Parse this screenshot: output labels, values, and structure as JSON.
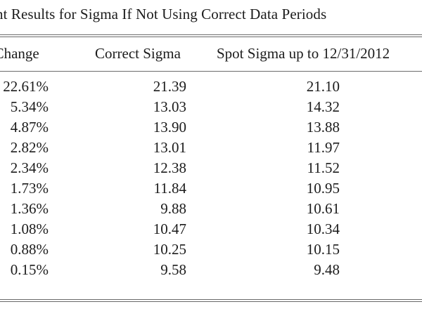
{
  "table": {
    "caption": "nt Results for Sigma If Not Using Correct Data Periods",
    "headers": [
      "nt Change",
      "Correct Sigma",
      "Spot Sigma up to 12/31/2012"
    ],
    "rows": [
      [
        "22.61%",
        "21.39",
        "21.10"
      ],
      [
        "5.34%",
        "13.03",
        "14.32"
      ],
      [
        "4.87%",
        "13.90",
        "13.88"
      ],
      [
        "2.82%",
        "13.01",
        "11.97"
      ],
      [
        "2.34%",
        "12.38",
        "11.52"
      ],
      [
        "1.73%",
        "11.84",
        "10.95"
      ],
      [
        "1.36%",
        "9.88",
        "10.61"
      ],
      [
        "1.08%",
        "10.47",
        "10.34"
      ],
      [
        "0.88%",
        "10.25",
        "10.15"
      ],
      [
        "0.15%",
        "9.58",
        "9.48"
      ]
    ]
  }
}
